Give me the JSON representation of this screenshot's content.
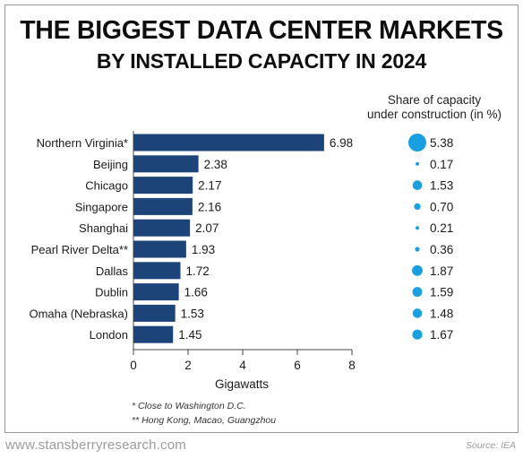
{
  "title_line1": "THE BIGGEST DATA CENTER MARKETS",
  "title_line2": "BY INSTALLED CAPACITY IN 2024",
  "share_header_line1": "Share of capacity",
  "share_header_line2": "under construction (in %)",
  "footnote1": "* Close to Washington D.C.",
  "footnote2": "** Hong Kong, Macao, Guangzhou",
  "website": "www.stansberryresearch.com",
  "source": "Source: IEA",
  "colors": {
    "bar": "#1c4479",
    "bubble": "#1a9fe0",
    "axis": "#444444"
  },
  "chart_data": [
    {
      "type": "bar",
      "orientation": "horizontal",
      "categories": [
        "Northern Virginia*",
        "Beijing",
        "Chicago",
        "Singapore",
        "Shanghai",
        "Pearl River Delta**",
        "Dallas",
        "Dublin",
        "Omaha (Nebraska)",
        "London"
      ],
      "values": [
        6.98,
        2.38,
        2.17,
        2.16,
        2.07,
        1.93,
        1.72,
        1.66,
        1.53,
        1.45
      ],
      "value_labels": [
        "6.98",
        "2.38",
        "2.17",
        "2.16",
        "2.07",
        "1.93",
        "1.72",
        "1.66",
        "1.53",
        "1.45"
      ],
      "xlabel": "Gigawatts",
      "xlim": [
        0,
        8
      ],
      "xticks": [
        "0",
        "2",
        "4",
        "6",
        "8"
      ],
      "grid": false
    },
    {
      "type": "scatter",
      "title": "Share of capacity under construction (in %)",
      "categories": [
        "Northern Virginia*",
        "Beijing",
        "Chicago",
        "Singapore",
        "Shanghai",
        "Pearl River Delta**",
        "Dallas",
        "Dublin",
        "Omaha (Nebraska)",
        "London"
      ],
      "values": [
        5.38,
        0.17,
        1.53,
        0.7,
        0.21,
        0.36,
        1.87,
        1.59,
        1.48,
        1.67
      ],
      "value_labels": [
        "5.38",
        "0.17",
        "1.53",
        "0.70",
        "0.21",
        "0.36",
        "1.87",
        "1.59",
        "1.48",
        "1.67"
      ]
    }
  ]
}
